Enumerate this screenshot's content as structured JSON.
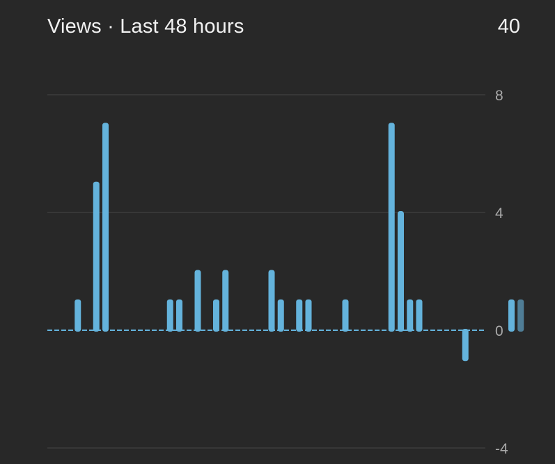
{
  "header": {
    "title": "Views · Last 48 hours",
    "total": "40"
  },
  "colors": {
    "background": "#282828",
    "bar": "#64b3dc",
    "bar_partial": "#4f7d96",
    "gridline": "#3c3c3c",
    "baseline": "#64b3dc",
    "text": "#f1f1f1",
    "tick_text": "#aaaaaa"
  },
  "chart_data": {
    "type": "bar",
    "title": "Views · Last 48 hours",
    "xlabel": "",
    "ylabel": "",
    "ylim": [
      -4,
      8
    ],
    "yticks": [
      "8",
      "4",
      "0",
      "-4"
    ],
    "ytick_values": [
      8,
      4,
      0,
      -4
    ],
    "grid": true,
    "values": [
      0,
      1,
      0,
      5,
      7,
      0,
      0,
      0,
      0,
      0,
      0,
      1,
      1,
      0,
      2,
      0,
      1,
      2,
      0,
      0,
      0,
      0,
      2,
      1,
      0,
      1,
      1,
      0,
      0,
      0,
      1,
      0,
      0,
      0,
      0,
      7,
      4,
      1,
      1,
      0,
      0,
      0,
      0,
      -1,
      0,
      0,
      0,
      0,
      1,
      1
    ],
    "partial_last": true
  }
}
